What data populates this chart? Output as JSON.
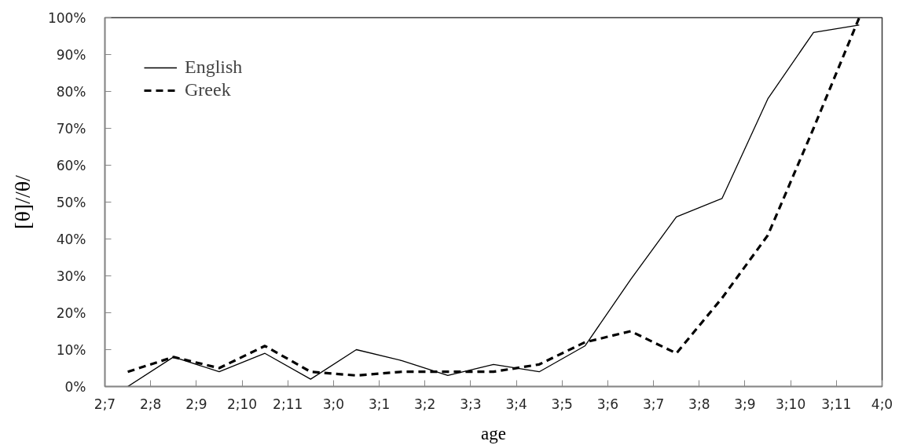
{
  "chart_data": {
    "type": "line",
    "xlabel": "age",
    "ylabel": "[θ]//θ/",
    "categories": [
      "2;7",
      null,
      "2;8",
      null,
      "2;9",
      null,
      "2;10",
      null,
      "2;11",
      null,
      "3;0",
      null,
      "3;1",
      null,
      "3;2",
      null,
      "3;3",
      null,
      "3;4",
      null,
      "3;5",
      null,
      "3;6",
      null,
      "3;7",
      null,
      "3;8",
      null,
      "3;9",
      null,
      "3;10",
      null,
      "3;11",
      null,
      "4;0"
    ],
    "ylim": [
      0,
      100
    ],
    "yticks": [
      {
        "value": 0,
        "label": "0%"
      },
      {
        "value": 10,
        "label": "10%"
      },
      {
        "value": 20,
        "label": "20%"
      },
      {
        "value": 30,
        "label": "30%"
      },
      {
        "value": 40,
        "label": "40%"
      },
      {
        "value": 50,
        "label": "50%"
      },
      {
        "value": 60,
        "label": "60%"
      },
      {
        "value": 70,
        "label": "70%"
      },
      {
        "value": 80,
        "label": "80%"
      },
      {
        "value": 90,
        "label": "90%"
      },
      {
        "value": 100,
        "label": "100%"
      }
    ],
    "series": [
      {
        "name": "English",
        "color": "#000000",
        "line_style": "solid",
        "values": [
          null,
          0,
          null,
          8,
          null,
          4,
          null,
          9,
          null,
          2,
          null,
          10,
          null,
          7,
          null,
          3,
          null,
          6,
          null,
          4,
          null,
          11,
          null,
          29,
          null,
          46,
          null,
          51,
          null,
          78,
          null,
          96,
          null,
          98,
          null
        ]
      },
      {
        "name": "Greek",
        "color": "#000000",
        "line_style": "dashed",
        "values": [
          null,
          4,
          null,
          8,
          null,
          5,
          null,
          11,
          null,
          4,
          null,
          3,
          null,
          4,
          null,
          4,
          null,
          4,
          null,
          6,
          null,
          12,
          null,
          15,
          null,
          9,
          null,
          24,
          null,
          41,
          null,
          70,
          null,
          100,
          null
        ]
      }
    ],
    "legend": "top left",
    "grid": false
  }
}
